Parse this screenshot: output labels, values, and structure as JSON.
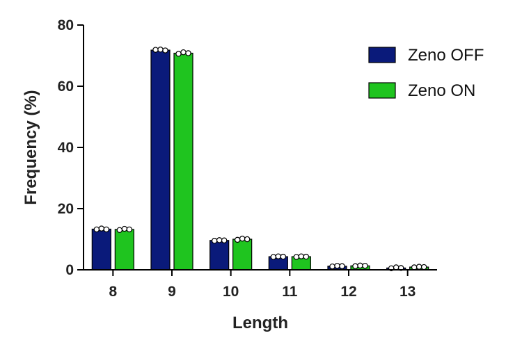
{
  "chart_data": {
    "type": "bar",
    "categories": [
      "8",
      "9",
      "10",
      "11",
      "12",
      "13"
    ],
    "series": [
      {
        "name": "Zeno OFF",
        "color": "#0a1a7a",
        "values": [
          13.3,
          71.8,
          9.6,
          4.3,
          1.2,
          0.6
        ],
        "replicates": [
          [
            13.2,
            13.5,
            13.2
          ],
          [
            71.9,
            72.0,
            71.7
          ],
          [
            9.5,
            9.7,
            9.6
          ],
          [
            4.2,
            4.4,
            4.3
          ],
          [
            1.1,
            1.3,
            1.2
          ],
          [
            0.5,
            0.8,
            0.6
          ]
        ]
      },
      {
        "name": "Zeno ON",
        "color": "#1fc41f",
        "values": [
          13.2,
          70.8,
          10.0,
          4.3,
          1.3,
          0.9
        ],
        "replicates": [
          [
            13.0,
            13.4,
            13.2
          ],
          [
            70.6,
            71.1,
            70.8
          ],
          [
            9.8,
            10.2,
            10.0
          ],
          [
            4.2,
            4.4,
            4.3
          ],
          [
            1.2,
            1.4,
            1.3
          ],
          [
            0.8,
            1.0,
            0.9
          ]
        ]
      }
    ],
    "xlabel": "Length",
    "ylabel": "Frequency (%)",
    "ylim": [
      0,
      80
    ],
    "yticks": [
      0,
      20,
      40,
      60,
      80
    ],
    "grid": false,
    "legend_position": "top-right"
  }
}
